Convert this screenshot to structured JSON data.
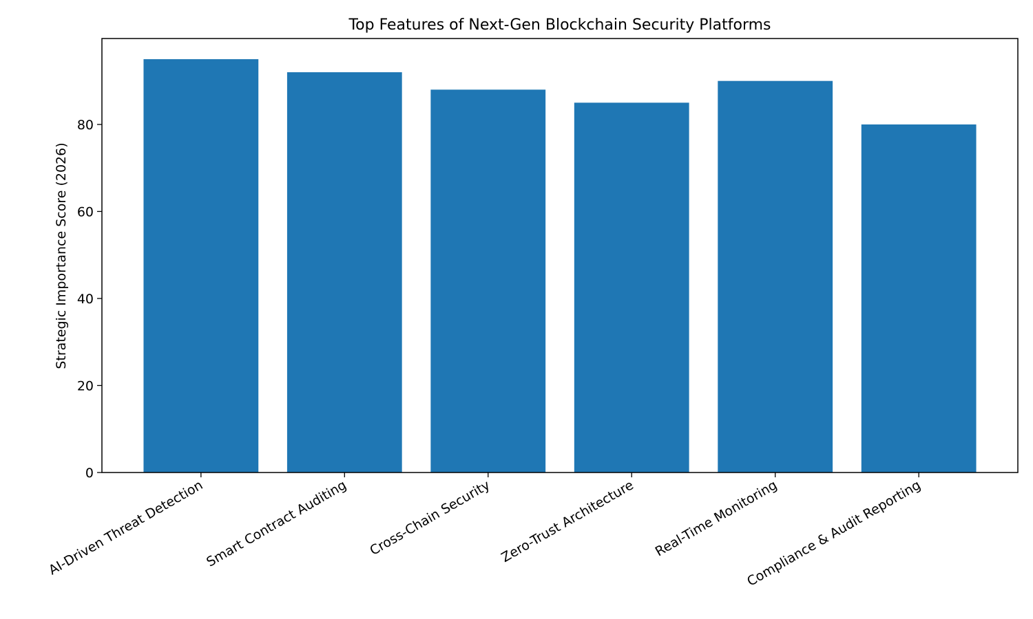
{
  "chart_data": {
    "type": "bar",
    "title": "Top Features of Next-Gen Blockchain Security Platforms",
    "xlabel": "",
    "ylabel": "Strategic Importance Score (2026)",
    "categories": [
      "AI-Driven Threat Detection",
      "Smart Contract Auditing",
      "Cross-Chain Security",
      "Zero-Trust Architecture",
      "Real-Time Monitoring",
      "Compliance & Audit Reporting"
    ],
    "values": [
      95,
      92,
      88,
      85,
      90,
      80
    ],
    "ylim": [
      0,
      99.75
    ],
    "yticks": [
      0,
      20,
      40,
      60,
      80
    ],
    "bar_color": "#1f77b4",
    "grid": false,
    "legend": "none"
  }
}
